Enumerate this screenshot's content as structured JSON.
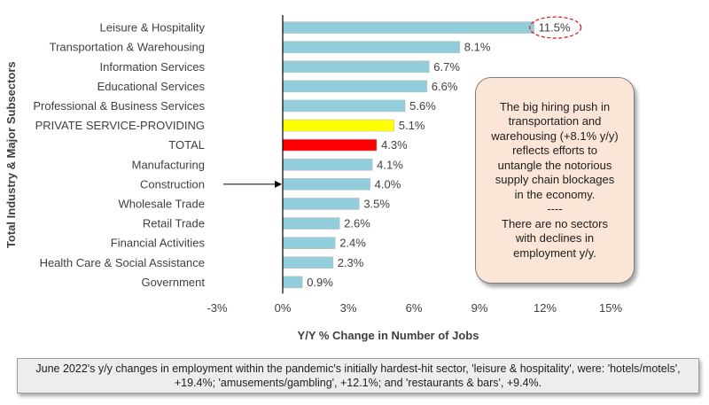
{
  "chart_data": {
    "type": "bar",
    "orientation": "horizontal",
    "categories": [
      "Leisure & Hospitality",
      "Transportation & Warehousing",
      "Information Services",
      "Educational Services",
      "Professional & Business Services",
      "PRIVATE SERVICE-PROVIDING",
      "TOTAL",
      "Manufacturing",
      "Construction",
      "Wholesale Trade",
      "Retail Trade",
      "Financial Activities",
      "Health Care & Social Assistance",
      "Government"
    ],
    "values": [
      11.5,
      8.1,
      6.7,
      6.6,
      5.6,
      5.1,
      4.3,
      4.1,
      4.0,
      3.5,
      2.6,
      2.4,
      2.3,
      0.9
    ],
    "value_labels": [
      "11.5%",
      "8.1%",
      "6.7%",
      "6.6%",
      "5.6%",
      "5.1%",
      "4.3%",
      "4.1%",
      "4.0%",
      "3.5%",
      "2.6%",
      "2.4%",
      "2.3%",
      "0.9%"
    ],
    "bar_colors": [
      "#92cddc",
      "#92cddc",
      "#92cddc",
      "#92cddc",
      "#92cddc",
      "#ffff00",
      "#ff0000",
      "#92cddc",
      "#92cddc",
      "#92cddc",
      "#92cddc",
      "#92cddc",
      "#92cddc",
      "#92cddc"
    ],
    "xlim": [
      -3,
      15
    ],
    "xticks": [
      -3,
      0,
      3,
      6,
      9,
      12,
      15
    ],
    "xtick_labels": [
      "-3%",
      "0%",
      "3%",
      "6%",
      "9%",
      "12%",
      "15%"
    ],
    "xlabel": "Y/Y % Change in Number of Jobs",
    "ylabel": "Total Industry & Major Subsectors",
    "grid": false,
    "highlighted_label_index": 0,
    "highlight_color": "#e02020",
    "arrow_target_index": 8
  },
  "callout": {
    "text": "The big hiring push in\ntransportation and\nwarehousing (+8.1% y/y)\nreflects efforts to\nuntangle the notorious\nsupply chain blockages\nin the economy.\n----\nThere are no sectors\nwith declines in\nemployment y/y."
  },
  "footnote": {
    "text": "June 2022's y/y changes in employment within the pandemic's initially hardest-hit sector, 'leisure & hospitality', were: 'hotels/motels', +19.4%; 'amusements/gambling', +12.1%; and 'restaurants & bars', +9.4%."
  }
}
